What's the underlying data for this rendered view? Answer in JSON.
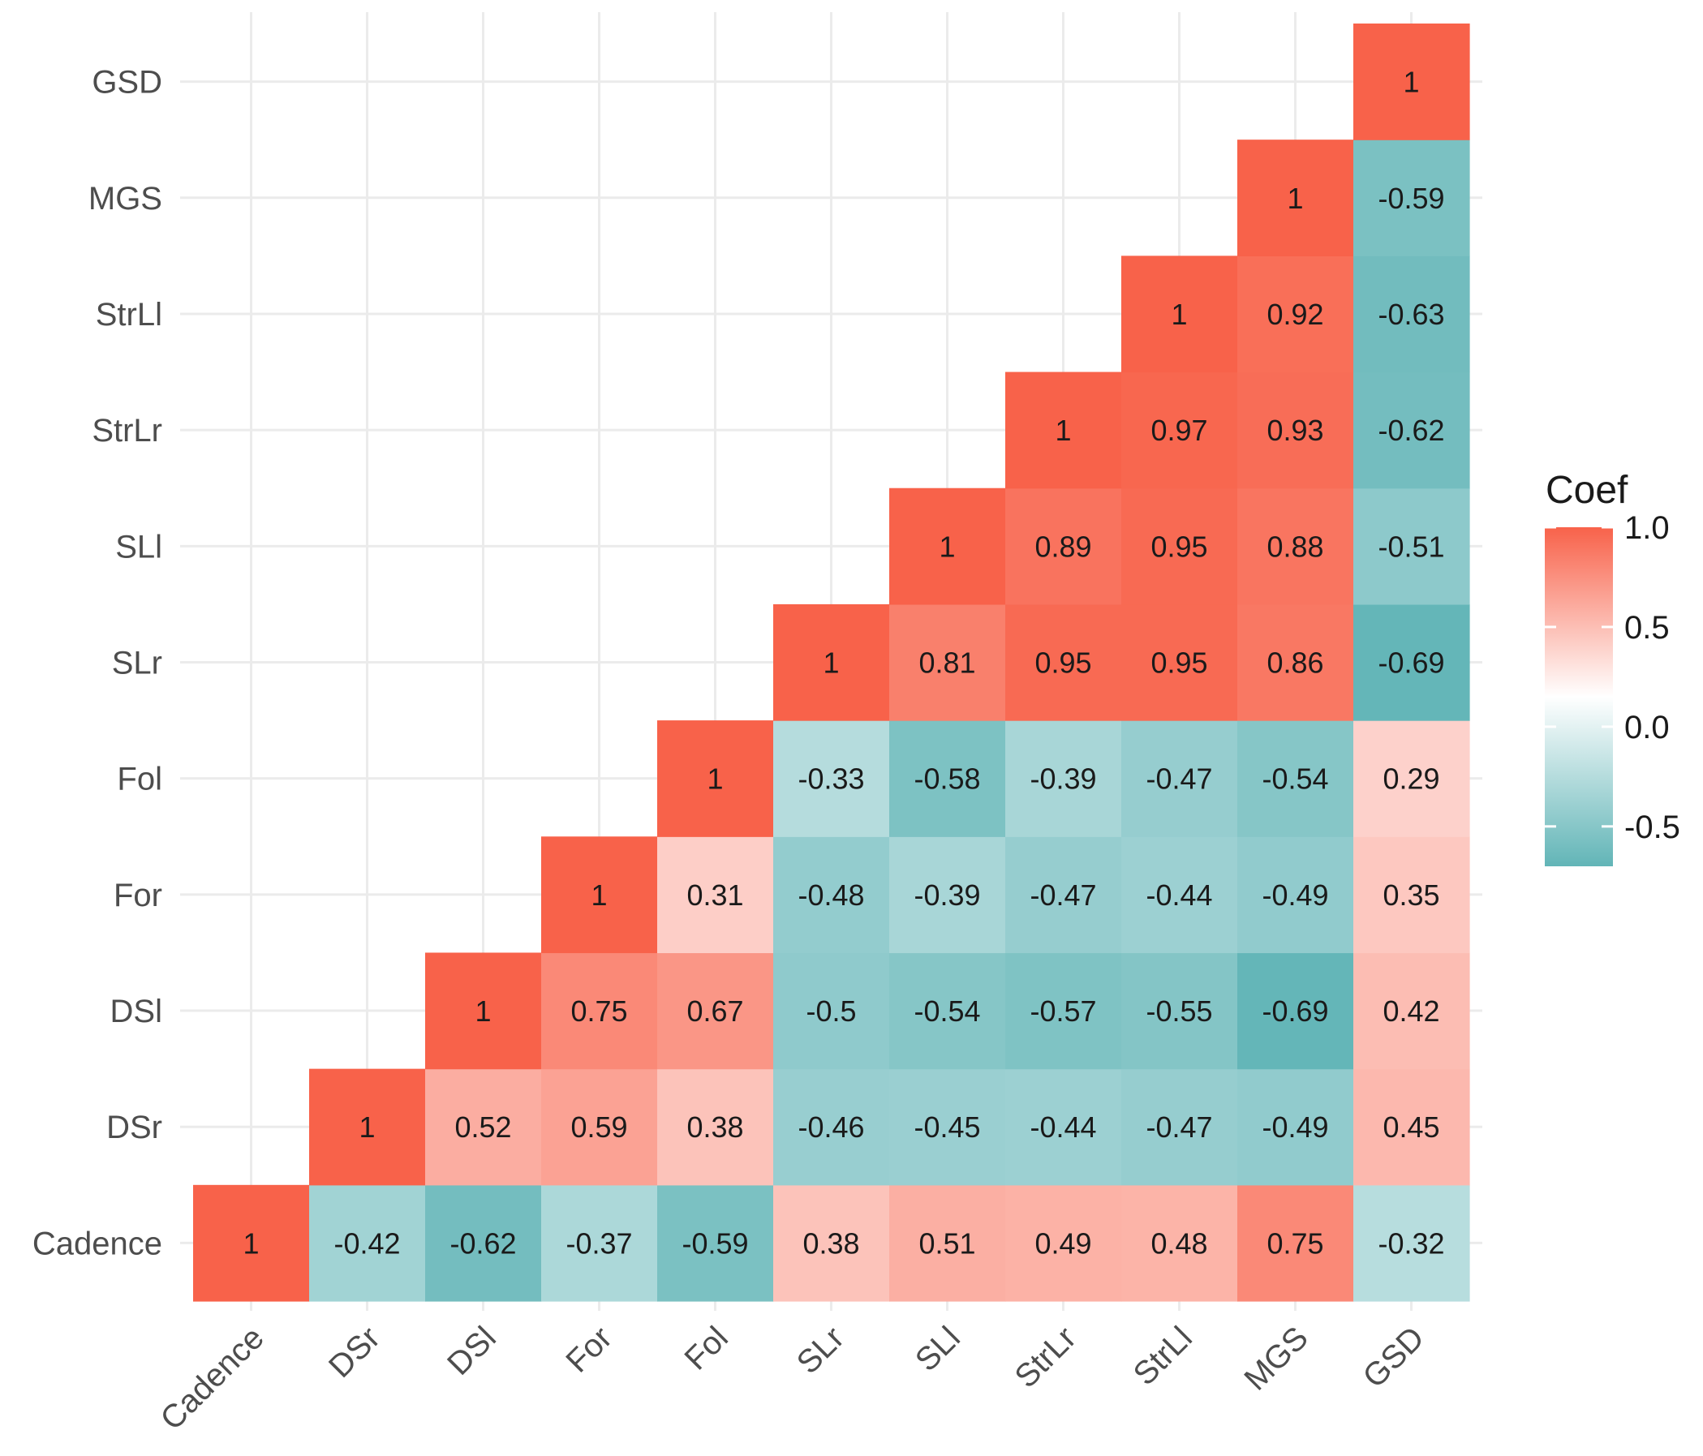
{
  "chart_data": {
    "type": "heatmap",
    "title": "",
    "xlabel": "",
    "ylabel": "",
    "variables": [
      "Cadence",
      "DSr",
      "DSl",
      "For",
      "Fol",
      "SLr",
      "SLl",
      "StrLr",
      "StrLl",
      "MGS",
      "GSD"
    ],
    "x_tick_labels": [
      "Cadence",
      "DSr",
      "DSl",
      "For",
      "Fol",
      "SLr",
      "SLl",
      "StrLr",
      "StrLl",
      "MGS",
      "GSD"
    ],
    "y_tick_labels": [
      "Cadence",
      "DSr",
      "DSl",
      "For",
      "Fol",
      "SLr",
      "SLl",
      "StrLr",
      "StrLl",
      "MGS",
      "GSD"
    ],
    "matrix_lower_triangle": [
      [
        1
      ],
      [
        -0.42,
        1
      ],
      [
        -0.62,
        0.52,
        1
      ],
      [
        -0.37,
        0.59,
        0.75,
        1
      ],
      [
        -0.59,
        0.38,
        0.67,
        0.31,
        1
      ],
      [
        0.38,
        -0.46,
        -0.5,
        -0.48,
        -0.33,
        1
      ],
      [
        0.51,
        -0.45,
        -0.54,
        -0.39,
        -0.58,
        0.81,
        1
      ],
      [
        0.49,
        -0.44,
        -0.57,
        -0.47,
        -0.39,
        0.95,
        0.89,
        1
      ],
      [
        0.48,
        -0.47,
        -0.55,
        -0.44,
        -0.47,
        0.95,
        0.95,
        0.97,
        1
      ],
      [
        0.75,
        -0.49,
        -0.69,
        -0.49,
        -0.54,
        0.86,
        0.88,
        0.93,
        0.92,
        1
      ],
      [
        -0.32,
        0.45,
        0.42,
        0.35,
        0.29,
        -0.69,
        -0.51,
        -0.62,
        -0.63,
        -0.59,
        1
      ]
    ],
    "colorscale": {
      "low": "#62b5b7",
      "mid": "#ffffff",
      "high": "#f8624a",
      "range": [
        -0.7,
        1.0
      ]
    },
    "legend": {
      "title": "Coef",
      "ticks": [
        1.0,
        0.5,
        0.0,
        -0.5
      ],
      "tick_labels": [
        "1.0",
        "0.5",
        "0.0",
        "-0.5"
      ],
      "position": "right"
    },
    "grid": true
  }
}
